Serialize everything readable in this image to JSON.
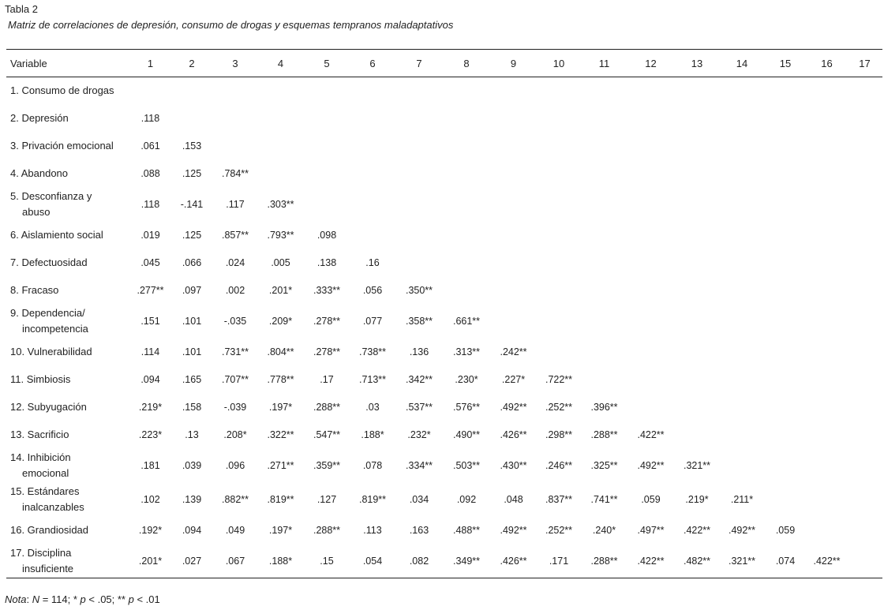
{
  "caption": "Tabla 2",
  "subtitle": "Matriz de correlaciones de depresión, consumo de drogas y esquemas tempranos maladaptativos",
  "table": {
    "header": [
      "Variable",
      "1",
      "2",
      "3",
      "4",
      "5",
      "6",
      "7",
      "8",
      "9",
      "10",
      "11",
      "12",
      "13",
      "14",
      "15",
      "16",
      "17"
    ],
    "rows": [
      {
        "label": [
          "1. Consumo de drogas"
        ],
        "values": []
      },
      {
        "label": [
          "2. Depresión"
        ],
        "values": [
          ".118"
        ]
      },
      {
        "label": [
          "3. Privación emocional"
        ],
        "values": [
          ".061",
          ".153"
        ]
      },
      {
        "label": [
          "4. Abandono"
        ],
        "values": [
          ".088",
          ".125",
          ".784**"
        ]
      },
      {
        "label": [
          "5. Desconfianza y",
          "abuso"
        ],
        "values": [
          ".118",
          "-.141",
          ".117",
          ".303**"
        ]
      },
      {
        "label": [
          "6. Aislamiento social"
        ],
        "values": [
          ".019",
          ".125",
          ".857**",
          ".793**",
          ".098"
        ]
      },
      {
        "label": [
          "7. Defectuosidad"
        ],
        "values": [
          ".045",
          ".066",
          ".024",
          ".005",
          ".138",
          ".16"
        ]
      },
      {
        "label": [
          "8. Fracaso"
        ],
        "values": [
          ".277**",
          ".097",
          ".002",
          ".201*",
          ".333**",
          ".056",
          ".350**"
        ]
      },
      {
        "label": [
          "9. Dependencia/",
          "incompetencia"
        ],
        "values": [
          ".151",
          ".101",
          "-.035",
          ".209*",
          ".278**",
          ".077",
          ".358**",
          ".661**"
        ]
      },
      {
        "label": [
          "10. Vulnerabilidad"
        ],
        "values": [
          ".114",
          ".101",
          ".731**",
          ".804**",
          ".278**",
          ".738**",
          ".136",
          ".313**",
          ".242**"
        ]
      },
      {
        "label": [
          "11. Simbiosis"
        ],
        "values": [
          ".094",
          ".165",
          ".707**",
          ".778**",
          ".17",
          ".713**",
          ".342**",
          ".230*",
          ".227*",
          ".722**"
        ]
      },
      {
        "label": [
          "12. Subyugación"
        ],
        "values": [
          ".219*",
          ".158",
          "-.039",
          ".197*",
          ".288**",
          ".03",
          ".537**",
          ".576**",
          ".492**",
          ".252**",
          ".396**"
        ]
      },
      {
        "label": [
          "13. Sacrificio"
        ],
        "values": [
          ".223*",
          ".13",
          ".208*",
          ".322**",
          ".547**",
          ".188*",
          ".232*",
          ".490**",
          ".426**",
          ".298**",
          ".288**",
          ".422**"
        ]
      },
      {
        "label": [
          "14. Inhibición",
          "emocional"
        ],
        "values": [
          ".181",
          ".039",
          ".096",
          ".271**",
          ".359**",
          ".078",
          ".334**",
          ".503**",
          ".430**",
          ".246**",
          ".325**",
          ".492**",
          ".321**"
        ]
      },
      {
        "label": [
          "15. Estándares",
          "inalcanzables"
        ],
        "values": [
          ".102",
          ".139",
          ".882**",
          ".819**",
          ".127",
          ".819**",
          ".034",
          ".092",
          ".048",
          ".837**",
          ".741**",
          ".059",
          ".219*",
          ".211*"
        ]
      },
      {
        "label": [
          "16. Grandiosidad"
        ],
        "values": [
          ".192*",
          ".094",
          ".049",
          ".197*",
          ".288**",
          ".113",
          ".163",
          ".488**",
          ".492**",
          ".252**",
          ".240*",
          ".497**",
          ".422**",
          ".492**",
          ".059"
        ]
      },
      {
        "label": [
          "17. Disciplina",
          "insuficiente"
        ],
        "values": [
          ".201*",
          ".027",
          ".067",
          ".188*",
          ".15",
          ".054",
          ".082",
          ".349**",
          ".426**",
          ".171",
          ".288**",
          ".422**",
          ".482**",
          ".321**",
          ".074",
          ".422**"
        ]
      }
    ]
  },
  "note": {
    "prefix": "Nota",
    "text_1": ": ",
    "n_symbol": "N",
    "text_2": " = 114; * ",
    "p1": "p",
    "text_3": " < .05; ** ",
    "p2": "p",
    "text_4": " < .01"
  }
}
